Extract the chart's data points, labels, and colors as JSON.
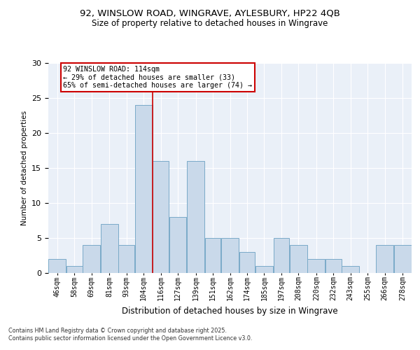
{
  "title_line1": "92, WINSLOW ROAD, WINGRAVE, AYLESBURY, HP22 4QB",
  "title_line2": "Size of property relative to detached houses in Wingrave",
  "xlabel": "Distribution of detached houses by size in Wingrave",
  "ylabel": "Number of detached properties",
  "footnote_line1": "Contains HM Land Registry data © Crown copyright and database right 2025.",
  "footnote_line2": "Contains public sector information licensed under the Open Government Licence v3.0.",
  "annotation_line1": "92 WINSLOW ROAD: 114sqm",
  "annotation_line2": "← 29% of detached houses are smaller (33)",
  "annotation_line3": "65% of semi-detached houses are larger (74) →",
  "bar_color": "#c9d9ea",
  "bar_edgecolor": "#7aaac8",
  "redline_color": "#cc0000",
  "annotation_box_edgecolor": "#cc0000",
  "background_color": "#eaf0f8",
  "categories": [
    "46sqm",
    "58sqm",
    "69sqm",
    "81sqm",
    "93sqm",
    "104sqm",
    "116sqm",
    "127sqm",
    "139sqm",
    "151sqm",
    "162sqm",
    "174sqm",
    "185sqm",
    "197sqm",
    "208sqm",
    "220sqm",
    "232sqm",
    "243sqm",
    "255sqm",
    "266sqm",
    "278sqm"
  ],
  "values": [
    2,
    1,
    4,
    7,
    4,
    24,
    16,
    8,
    16,
    5,
    5,
    3,
    1,
    5,
    4,
    2,
    2,
    1,
    0,
    4,
    4
  ],
  "bin_edges": [
    46,
    58,
    69,
    81,
    93,
    104,
    116,
    127,
    139,
    151,
    162,
    174,
    185,
    197,
    208,
    220,
    232,
    243,
    255,
    266,
    278,
    290
  ],
  "ylim": [
    0,
    30
  ],
  "yticks": [
    0,
    5,
    10,
    15,
    20,
    25,
    30
  ],
  "redline_x": 116
}
